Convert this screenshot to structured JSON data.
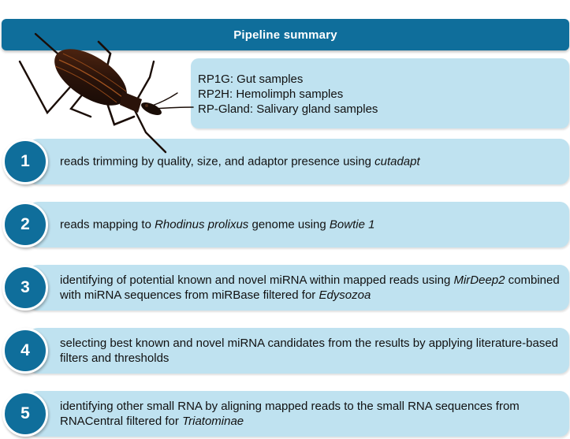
{
  "header": {
    "title": "Pipeline summary"
  },
  "samples": {
    "line1": "RP1G: Gut samples",
    "line2": "RP2H: Hemolimph samples",
    "line3": "RP-Gland: Salivary gland samples"
  },
  "image": {
    "icon": "kissing-bug-insect"
  },
  "steps": [
    {
      "number": "1",
      "parts": [
        {
          "t": "reads trimming by quality, size, and adaptor presence using "
        },
        {
          "t": "cutadapt",
          "i": true
        }
      ]
    },
    {
      "number": "2",
      "parts": [
        {
          "t": "reads mapping to "
        },
        {
          "t": "Rhodinus prolixus",
          "i": true
        },
        {
          "t": " genome using "
        },
        {
          "t": "Bowtie 1",
          "i": true
        }
      ]
    },
    {
      "number": "3",
      "parts": [
        {
          "t": "identifying of potential known and novel miRNA within mapped reads using "
        },
        {
          "t": "MirDeep2",
          "i": true
        },
        {
          "t": " combined with miRNA sequences from miRBase filtered for "
        },
        {
          "t": "Edysozoa",
          "i": true
        }
      ]
    },
    {
      "number": "4",
      "parts": [
        {
          "t": "selecting best known and novel miRNA candidates from the results by applying literature-based filters and thresholds"
        }
      ]
    },
    {
      "number": "5",
      "parts": [
        {
          "t": "identifying other small RNA by aligning mapped reads to the small RNA sequences from RNACentral filtered for "
        },
        {
          "t": "Triatominae",
          "i": true
        }
      ]
    }
  ],
  "colors": {
    "primary": "#0f6e9b",
    "box": "#bfe2f0"
  }
}
